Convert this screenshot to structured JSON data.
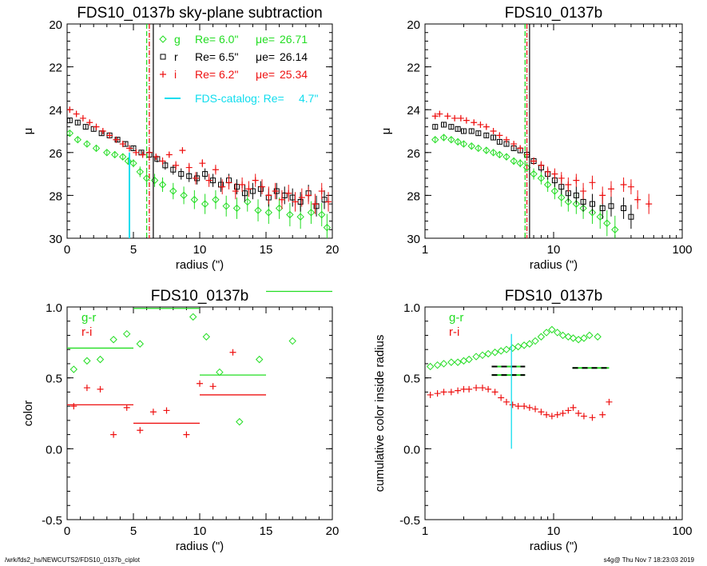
{
  "footer": {
    "path": "/wrk/fds2_hs/NEWCUTS2/FDS10_0137b_ciplot",
    "stamp": "s4g@  Thu Nov  7 18:23:03 2019"
  },
  "colors": {
    "g": "#22dd22",
    "r": "#000000",
    "i": "#ee1111",
    "catalog": "#11ddee"
  },
  "chart_data": [
    {
      "type": "scatter",
      "title": "FDS10_0137b sky-plane subtraction",
      "xlabel": "radius (\")",
      "ylabel": "μ",
      "xlim": [
        0,
        20
      ],
      "ylim": [
        30,
        20
      ],
      "xscale": "linear",
      "xticks": [
        0,
        5,
        10,
        15,
        20
      ],
      "yticks": [
        20,
        22,
        24,
        26,
        28,
        30
      ],
      "legend": [
        {
          "band": "g",
          "symbol": "diamond",
          "re_label": "Re=",
          "re": "6.0\"",
          "mu_label": "μe=",
          "mu": "26.71"
        },
        {
          "band": "r",
          "symbol": "square",
          "re_label": "Re=",
          "re": "6.5\"",
          "mu_label": "μe=",
          "mu": "26.14"
        },
        {
          "band": "i",
          "symbol": "plus",
          "re_label": "Re=",
          "re": "6.2\"",
          "mu_label": "μe=",
          "mu": "25.34"
        }
      ],
      "catalog_label": "FDS-catalog: Re=",
      "catalog_value": "4.7\"",
      "catalog_re": 4.7,
      "re_lines": {
        "g": 6.0,
        "r": 6.5,
        "i": 6.2
      },
      "series": [
        {
          "band": "g",
          "x": [
            0.2,
            0.8,
            1.5,
            2.2,
            3.0,
            3.6,
            4.2,
            4.6,
            5.0,
            5.5,
            6.0,
            6.6,
            7.2,
            8.0,
            8.8,
            9.6,
            10.4,
            11.2,
            12.0,
            12.8,
            13.6,
            14.4,
            15.2,
            16.0,
            16.8,
            17.6,
            18.4,
            19.2,
            19.6
          ],
          "y": [
            25.1,
            25.4,
            25.6,
            25.8,
            26.0,
            26.1,
            26.2,
            26.4,
            26.5,
            26.9,
            27.2,
            27.3,
            27.5,
            27.8,
            28.0,
            28.2,
            28.4,
            28.2,
            28.5,
            28.6,
            28.3,
            28.7,
            28.8,
            28.6,
            28.9,
            29.0,
            28.8,
            28.9,
            29.5
          ]
        },
        {
          "band": "r",
          "x": [
            0.2,
            0.8,
            1.4,
            2.0,
            2.6,
            3.2,
            3.8,
            4.4,
            5.0,
            5.6,
            6.2,
            6.8,
            7.4,
            8.0,
            8.6,
            9.2,
            9.8,
            10.4,
            11.0,
            11.6,
            12.2,
            12.8,
            13.4,
            14.0,
            14.6,
            15.2,
            15.8,
            16.4,
            17.0,
            17.6,
            18.2,
            18.8,
            19.4
          ],
          "y": [
            24.5,
            24.6,
            24.8,
            24.9,
            25.1,
            25.2,
            25.4,
            25.6,
            25.8,
            26.0,
            26.1,
            26.3,
            26.6,
            26.8,
            27.0,
            27.1,
            27.2,
            27.0,
            27.3,
            27.5,
            27.3,
            27.6,
            27.9,
            27.8,
            27.7,
            28.1,
            27.8,
            28.0,
            28.1,
            28.3,
            27.9,
            28.5,
            28.2
          ]
        },
        {
          "band": "i",
          "x": [
            0.2,
            0.7,
            1.2,
            1.7,
            2.2,
            2.7,
            3.2,
            3.7,
            4.2,
            4.7,
            5.2,
            5.7,
            6.2,
            6.7,
            7.2,
            7.7,
            8.2,
            8.7,
            9.2,
            9.7,
            10.2,
            10.7,
            11.2,
            11.7,
            12.2,
            12.7,
            13.2,
            13.7,
            14.2,
            14.7,
            15.2,
            15.7,
            16.2,
            16.7,
            17.2,
            17.7,
            18.2,
            18.7,
            19.2,
            19.7
          ],
          "y": [
            24.0,
            24.2,
            24.4,
            24.6,
            24.8,
            25.0,
            25.2,
            25.4,
            25.6,
            25.8,
            26.0,
            26.1,
            26.0,
            26.2,
            26.4,
            26.1,
            26.6,
            25.9,
            26.7,
            27.2,
            26.5,
            27.3,
            26.8,
            27.6,
            27.4,
            27.8,
            27.5,
            27.7,
            27.3,
            27.6,
            28.0,
            27.8,
            28.2,
            27.9,
            28.3,
            28.1,
            28.0,
            28.4,
            27.8,
            28.3
          ]
        }
      ]
    },
    {
      "type": "scatter",
      "title": "FDS10_0137b",
      "xlabel": "radius (\")",
      "ylabel": "μ",
      "xlim": [
        1,
        100
      ],
      "ylim": [
        30,
        20
      ],
      "xscale": "log",
      "xticks": [
        1,
        10,
        100
      ],
      "yticks": [
        20,
        22,
        24,
        26,
        28,
        30
      ],
      "re_lines": {
        "g": 6.0,
        "r": 6.5,
        "i": 6.2
      },
      "series": [
        {
          "band": "g",
          "x": [
            1.2,
            1.4,
            1.6,
            1.8,
            2.0,
            2.3,
            2.6,
            3.0,
            3.4,
            3.8,
            4.3,
            4.9,
            5.5,
            6.2,
            7.0,
            8.0,
            9.0,
            10.2,
            11.5,
            13,
            15,
            17,
            20,
            23,
            26,
            30
          ],
          "y": [
            25.4,
            25.3,
            25.4,
            25.5,
            25.6,
            25.7,
            25.8,
            25.9,
            26.0,
            26.1,
            26.2,
            26.4,
            26.5,
            26.7,
            27.0,
            27.2,
            27.5,
            27.8,
            28.1,
            28.3,
            28.4,
            28.6,
            28.8,
            29.0,
            29.3,
            29.6
          ]
        },
        {
          "band": "r",
          "x": [
            1.2,
            1.4,
            1.6,
            1.8,
            2.0,
            2.3,
            2.6,
            3.0,
            3.4,
            3.8,
            4.3,
            4.9,
            5.5,
            6.2,
            7.0,
            8.0,
            9.0,
            10.2,
            11.5,
            13,
            15,
            17,
            20,
            24,
            28,
            35,
            40
          ],
          "y": [
            24.8,
            24.7,
            24.8,
            24.9,
            25.0,
            25.0,
            25.1,
            25.2,
            25.3,
            25.5,
            25.6,
            25.8,
            25.9,
            26.1,
            26.4,
            26.7,
            27.0,
            27.3,
            27.6,
            27.9,
            28.0,
            28.3,
            28.4,
            28.6,
            28.5,
            28.6,
            29.0
          ]
        },
        {
          "band": "i",
          "x": [
            1.2,
            1.3,
            1.5,
            1.7,
            1.9,
            2.1,
            2.4,
            2.7,
            3.0,
            3.4,
            3.8,
            4.3,
            4.9,
            5.5,
            6.2,
            7.0,
            8.0,
            9.0,
            10.2,
            11.5,
            13,
            15,
            17,
            20,
            24,
            28,
            35,
            40,
            45,
            55
          ],
          "y": [
            24.3,
            24.2,
            24.3,
            24.4,
            24.4,
            24.5,
            24.6,
            24.7,
            24.8,
            25.0,
            25.2,
            25.4,
            25.6,
            25.8,
            26.1,
            26.4,
            26.6,
            26.9,
            27.0,
            27.2,
            27.5,
            27.3,
            27.8,
            27.4,
            28.0,
            27.7,
            27.5,
            27.6,
            28.2,
            28.4
          ]
        }
      ]
    },
    {
      "type": "scatter",
      "title": "FDS10_0137b",
      "xlabel": "radius (\")",
      "ylabel": "color",
      "xlim": [
        0,
        20
      ],
      "ylim": [
        -0.5,
        1.0
      ],
      "xscale": "linear",
      "xticks": [
        0,
        5,
        10,
        15,
        20
      ],
      "yticks": [
        -0.5,
        0.0,
        0.5,
        1.0
      ],
      "legend": [
        {
          "name": "g-r",
          "band": "g"
        },
        {
          "name": "r-i",
          "band": "i"
        }
      ],
      "series": [
        {
          "name": "g-r",
          "band": "g",
          "x": [
            0.5,
            1.5,
            2.5,
            3.5,
            4.5,
            5.5,
            9.5,
            10.5,
            11.5,
            13,
            14.5,
            17
          ],
          "y": [
            0.56,
            0.62,
            0.63,
            0.77,
            0.81,
            0.74,
            0.93,
            0.79,
            0.54,
            0.19,
            0.63,
            0.76
          ]
        },
        {
          "name": "r-i",
          "band": "i",
          "x": [
            0.5,
            1.5,
            2.5,
            3.5,
            4.5,
            5.5,
            6.5,
            7.5,
            9,
            10,
            11,
            12.5
          ],
          "y": [
            0.3,
            0.43,
            0.42,
            0.1,
            0.29,
            0.13,
            0.26,
            0.27,
            0.1,
            0.46,
            0.44,
            0.68
          ]
        }
      ],
      "segments": [
        {
          "band": "g",
          "x": [
            0,
            5
          ],
          "y": 0.71
        },
        {
          "band": "g",
          "x": [
            5,
            10
          ],
          "y": 0.99
        },
        {
          "band": "g",
          "x": [
            10,
            15
          ],
          "y": 0.52
        },
        {
          "band": "g",
          "x": [
            15,
            20
          ],
          "y": 1.11
        },
        {
          "band": "i",
          "x": [
            0,
            5
          ],
          "y": 0.31
        },
        {
          "band": "i",
          "x": [
            5,
            10
          ],
          "y": 0.18
        },
        {
          "band": "i",
          "x": [
            10,
            15
          ],
          "y": 0.38
        }
      ]
    },
    {
      "type": "scatter",
      "title": "FDS10_0137b",
      "xlabel": "radius (\")",
      "ylabel": "cumulative color inside radius",
      "xlim": [
        1,
        100
      ],
      "ylim": [
        -0.5,
        1.0
      ],
      "xscale": "log",
      "xticks": [
        1,
        10,
        100
      ],
      "yticks": [
        -0.5,
        0.0,
        0.5,
        1.0
      ],
      "legend": [
        {
          "name": "g-r",
          "band": "g"
        },
        {
          "name": "r-i",
          "band": "i"
        }
      ],
      "catalog_re": 4.7,
      "series": [
        {
          "name": "g-r",
          "band": "g",
          "x": [
            1.1,
            1.25,
            1.4,
            1.6,
            1.8,
            2.0,
            2.2,
            2.5,
            2.8,
            3.1,
            3.5,
            3.9,
            4.3,
            4.8,
            5.3,
            5.9,
            6.5,
            7.2,
            8.0,
            8.8,
            9.7,
            10.7,
            11.8,
            13,
            14.2,
            15.6,
            17.2,
            19,
            22
          ],
          "y": [
            0.58,
            0.59,
            0.6,
            0.61,
            0.61,
            0.62,
            0.63,
            0.65,
            0.66,
            0.67,
            0.68,
            0.69,
            0.7,
            0.71,
            0.72,
            0.73,
            0.74,
            0.76,
            0.79,
            0.82,
            0.84,
            0.82,
            0.8,
            0.79,
            0.78,
            0.77,
            0.78,
            0.8,
            0.79
          ]
        },
        {
          "name": "r-i",
          "band": "i",
          "x": [
            1.1,
            1.25,
            1.4,
            1.6,
            1.8,
            2.0,
            2.2,
            2.5,
            2.8,
            3.1,
            3.5,
            3.9,
            4.3,
            4.8,
            5.3,
            5.9,
            6.5,
            7.2,
            8.0,
            8.8,
            9.7,
            10.7,
            11.8,
            13,
            14.2,
            15.6,
            17.2,
            20,
            24,
            27
          ],
          "y": [
            0.38,
            0.39,
            0.4,
            0.4,
            0.41,
            0.42,
            0.42,
            0.43,
            0.43,
            0.42,
            0.4,
            0.36,
            0.33,
            0.31,
            0.3,
            0.3,
            0.29,
            0.28,
            0.26,
            0.24,
            0.23,
            0.24,
            0.25,
            0.27,
            0.29,
            0.25,
            0.23,
            0.22,
            0.24,
            0.33
          ]
        }
      ],
      "dashed_segments": [
        {
          "x": [
            3.3,
            6.0
          ],
          "y": 0.58
        },
        {
          "x": [
            3.3,
            6.0
          ],
          "y": 0.52
        },
        {
          "x": [
            14,
            27
          ],
          "y": 0.57
        }
      ]
    }
  ]
}
